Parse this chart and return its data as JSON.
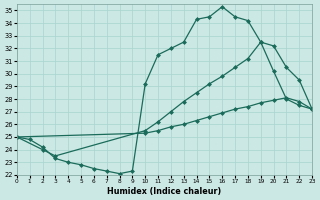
{
  "xlabel": "Humidex (Indice chaleur)",
  "bg_color": "#cce8e4",
  "grid_color": "#a8d4ce",
  "line_color": "#1a6b5a",
  "xlim": [
    0,
    23
  ],
  "ylim": [
    22,
    35.5
  ],
  "xticks": [
    0,
    1,
    2,
    3,
    4,
    5,
    6,
    7,
    8,
    9,
    10,
    11,
    12,
    13,
    14,
    15,
    16,
    17,
    18,
    19,
    20,
    21,
    22,
    23
  ],
  "yticks": [
    22,
    23,
    24,
    25,
    26,
    27,
    28,
    29,
    30,
    31,
    32,
    33,
    34,
    35
  ],
  "curve1_x": [
    0,
    1,
    2,
    3,
    4,
    5,
    6,
    7,
    8,
    9,
    10,
    11,
    12,
    13,
    14,
    15,
    16,
    17,
    18,
    19,
    20,
    21,
    22,
    23
  ],
  "curve1_y": [
    25.0,
    24.8,
    24.2,
    23.3,
    23.0,
    22.8,
    22.5,
    22.3,
    22.1,
    22.3,
    29.2,
    31.5,
    32.0,
    32.5,
    34.3,
    34.5,
    35.3,
    34.5,
    34.2,
    32.5,
    30.2,
    28.0,
    27.5,
    27.2
  ],
  "curve2_x": [
    0,
    2,
    3,
    10,
    11,
    12,
    13,
    14,
    15,
    16,
    17,
    18,
    19,
    20,
    21,
    22,
    23
  ],
  "curve2_y": [
    25.0,
    24.0,
    23.5,
    25.5,
    26.2,
    27.0,
    27.8,
    28.5,
    29.2,
    29.8,
    30.5,
    31.2,
    32.5,
    32.2,
    30.5,
    29.5,
    27.2
  ],
  "curve3_x": [
    0,
    10,
    11,
    12,
    13,
    14,
    15,
    16,
    17,
    18,
    19,
    20,
    21,
    22,
    23
  ],
  "curve3_y": [
    25.0,
    25.3,
    25.5,
    25.8,
    26.0,
    26.3,
    26.6,
    26.9,
    27.2,
    27.4,
    27.7,
    27.9,
    28.1,
    27.8,
    27.2
  ]
}
